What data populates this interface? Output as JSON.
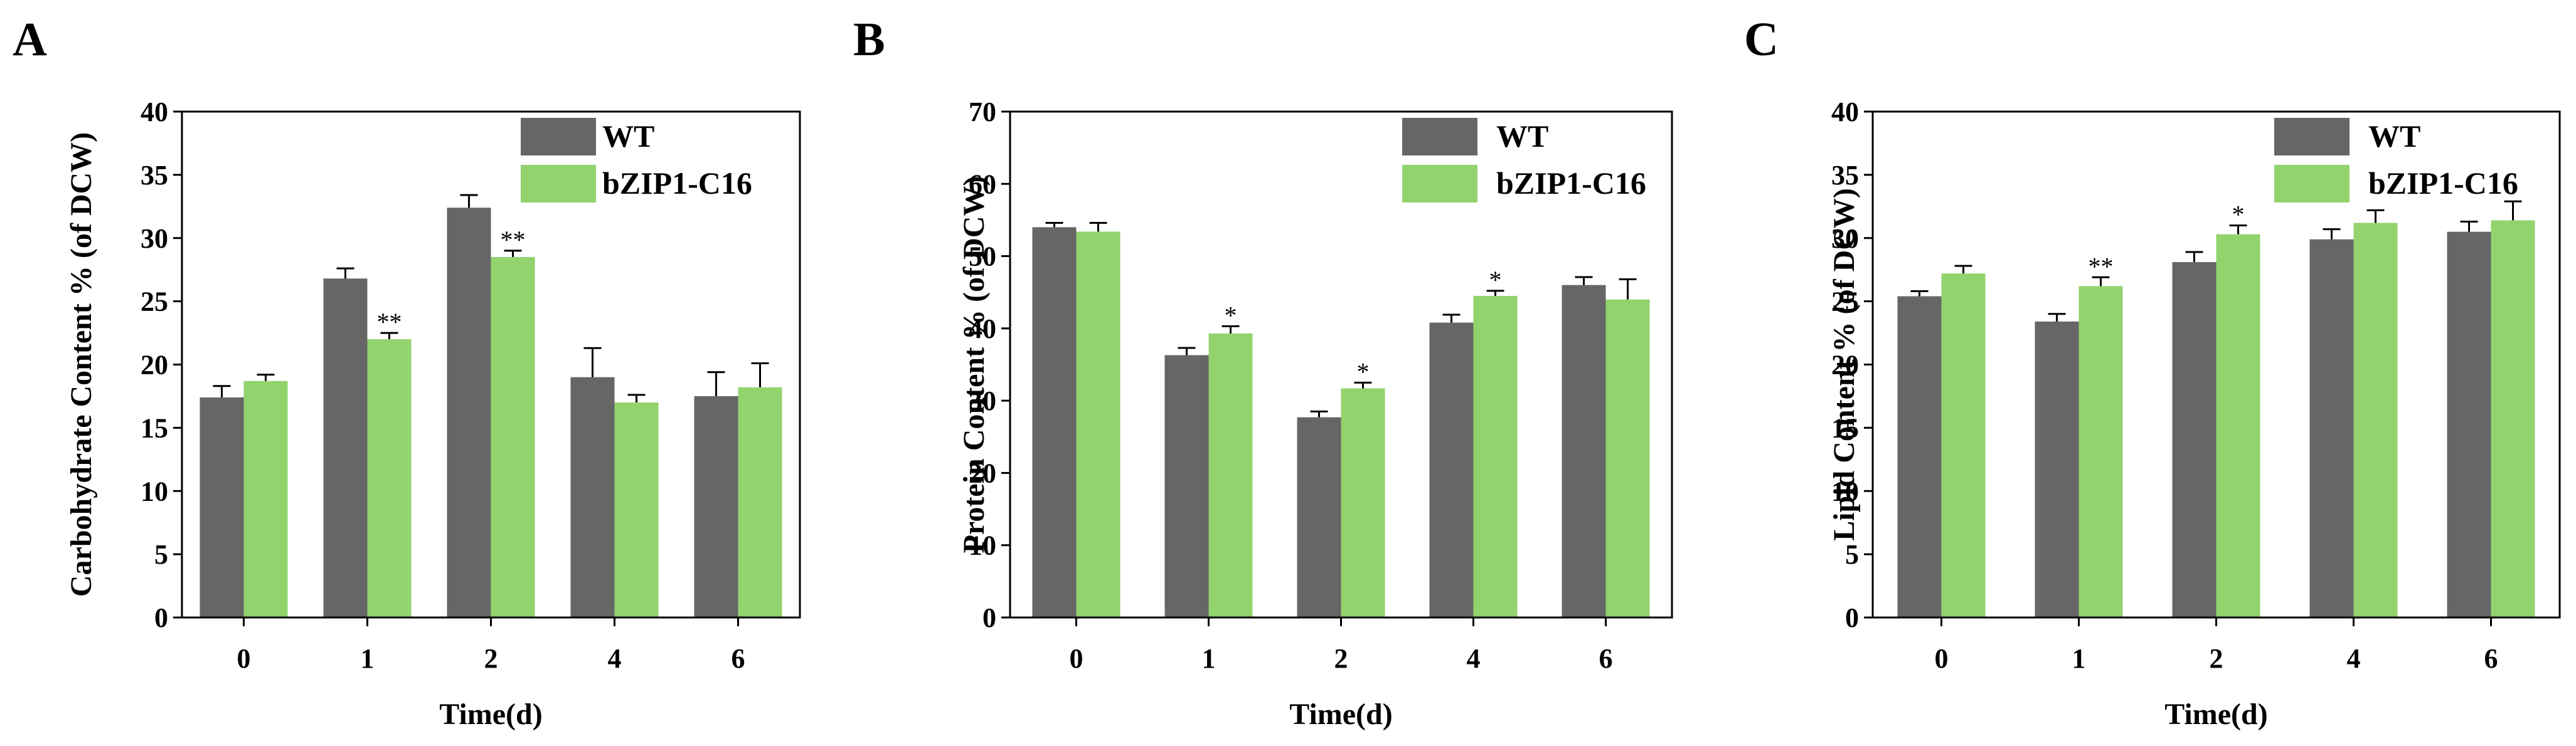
{
  "colors": {
    "wt": "#666666",
    "mutant": "#92d36e",
    "axis": "#000000"
  },
  "chart_data": [
    {
      "type": "bar",
      "panel": "A",
      "title": "",
      "xlabel": "Time(d)",
      "ylabel": "Carbohydrate Content % (of DCW)",
      "ylim": [
        0,
        40
      ],
      "yticks": [
        "0",
        "5",
        "10",
        "15",
        "20",
        "25",
        "30",
        "35",
        "40"
      ],
      "categories": [
        "0",
        "1",
        "2",
        "4",
        "6"
      ],
      "legend": {
        "position": "top-right",
        "entries": [
          "WT",
          "bZIP1-C16"
        ]
      },
      "series": [
        {
          "name": "WT",
          "values": [
            17.4,
            26.8,
            32.4,
            19.0,
            17.5
          ],
          "errors": [
            0.9,
            0.8,
            1.0,
            2.3,
            1.9
          ],
          "significance": [
            "",
            "",
            "",
            "",
            ""
          ]
        },
        {
          "name": "bZIP1-C16",
          "values": [
            18.7,
            22.0,
            28.5,
            17.0,
            18.2
          ],
          "errors": [
            0.5,
            0.5,
            0.5,
            0.6,
            1.9
          ],
          "significance": [
            "",
            "**",
            "**",
            "",
            ""
          ]
        }
      ]
    },
    {
      "type": "bar",
      "panel": "B",
      "title": "",
      "xlabel": "Time(d)",
      "ylabel": "Protein Content % (of DCW)",
      "ylim": [
        0,
        70
      ],
      "yticks": [
        "0",
        "10",
        "20",
        "30",
        "40",
        "50",
        "60",
        "70"
      ],
      "categories": [
        "0",
        "1",
        "2",
        "4",
        "6"
      ],
      "legend": {
        "position": "top-right",
        "entries": [
          "WT",
          "bZIP1-C16"
        ]
      },
      "series": [
        {
          "name": "WT",
          "values": [
            54.0,
            36.3,
            27.7,
            40.8,
            46.0
          ],
          "errors": [
            0.6,
            1.0,
            0.8,
            1.1,
            1.1
          ],
          "significance": [
            "",
            "",
            "",
            "",
            ""
          ]
        },
        {
          "name": "bZIP1-C16",
          "values": [
            53.4,
            39.3,
            31.7,
            44.5,
            44.0
          ],
          "errors": [
            1.2,
            1.0,
            0.8,
            0.7,
            2.8
          ],
          "significance": [
            "",
            "*",
            "*",
            "*",
            ""
          ]
        }
      ]
    },
    {
      "type": "bar",
      "panel": "C",
      "title": "",
      "xlabel": "Time(d)",
      "ylabel": "Lipid Content % (of DCW)",
      "ylim": [
        0,
        40
      ],
      "yticks": [
        "0",
        "5",
        "10",
        "15",
        "20",
        "25",
        "30",
        "35",
        "40"
      ],
      "categories": [
        "0",
        "1",
        "2",
        "4",
        "6"
      ],
      "legend": {
        "position": "top-right",
        "entries": [
          "WT",
          "bZIP1-C16"
        ]
      },
      "series": [
        {
          "name": "WT",
          "values": [
            25.4,
            23.4,
            28.1,
            29.9,
            30.5
          ],
          "errors": [
            0.4,
            0.6,
            0.8,
            0.8,
            0.8
          ],
          "significance": [
            "",
            "",
            "",
            "",
            ""
          ]
        },
        {
          "name": "bZIP1-C16",
          "values": [
            27.2,
            26.2,
            30.3,
            31.2,
            31.4
          ],
          "errors": [
            0.6,
            0.7,
            0.7,
            1.0,
            1.5
          ],
          "significance": [
            "",
            "**",
            "*",
            "",
            ""
          ]
        }
      ]
    }
  ]
}
